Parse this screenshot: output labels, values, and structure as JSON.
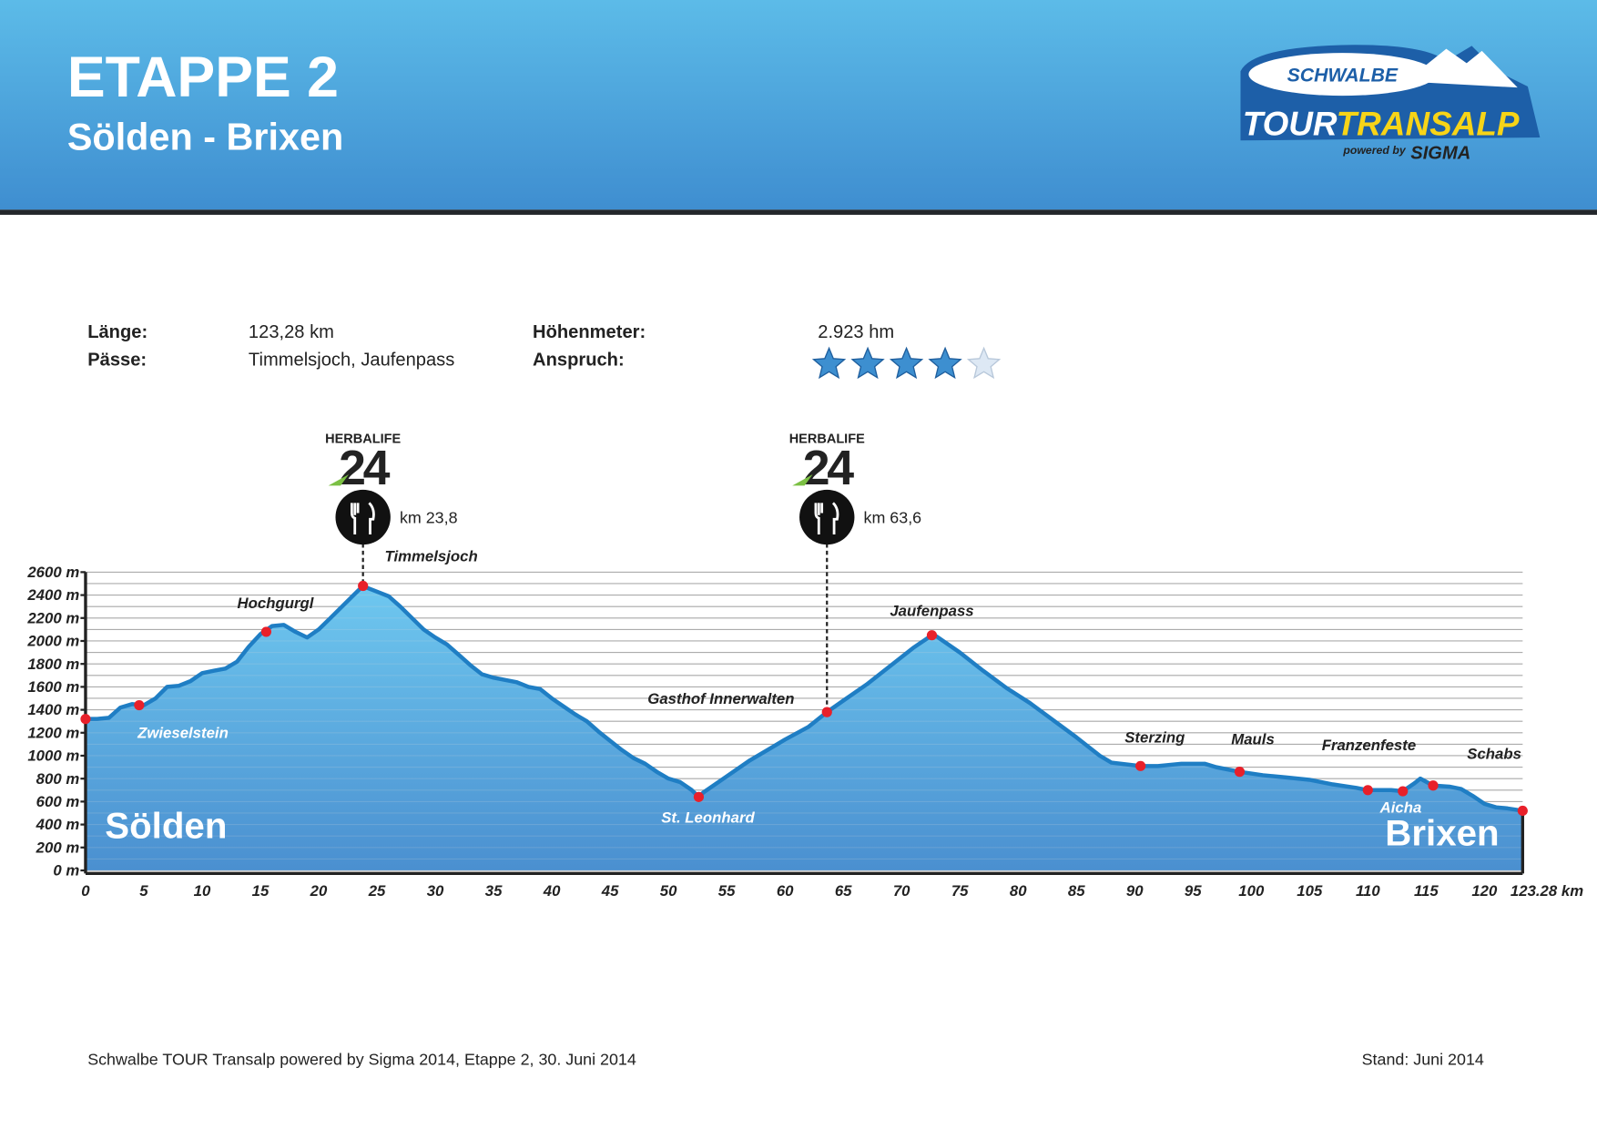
{
  "header": {
    "title": "ETAPPE 2",
    "subtitle": "Sölden - Brixen"
  },
  "logo": {
    "brand": "SCHWALBE",
    "tour": "TOUR",
    "transalp": "TRANSALP",
    "powered": "powered by",
    "sponsor": "SIGMA"
  },
  "info": {
    "length_label": "Länge:",
    "length": "123,28 km",
    "passes_label": "Pässe:",
    "passes": "Timmelsjoch, Jaufenpass",
    "climb_label": "Höhenmeter:",
    "climb": "2.923 hm",
    "rating_label": "Anspruch:",
    "rating": 4,
    "rating_max": 5
  },
  "chart_data": {
    "type": "area",
    "color": "#1f7ec4",
    "x": [
      0,
      1,
      2,
      3,
      4,
      5,
      6,
      7,
      8,
      9,
      10,
      11,
      12,
      13,
      14,
      15,
      16,
      17,
      18,
      19,
      20,
      21,
      22,
      23,
      23.8,
      24,
      25,
      26,
      27,
      28,
      29,
      30,
      31,
      32,
      33,
      34,
      35,
      36,
      37,
      38,
      39,
      40,
      41,
      42,
      43,
      44,
      45,
      46,
      47,
      48,
      49,
      50,
      51,
      52,
      52.6,
      53,
      55,
      57,
      59,
      60,
      62,
      63.6,
      65,
      67,
      69,
      71,
      72.6,
      73,
      75,
      77,
      79,
      81,
      83,
      85,
      87,
      88,
      90.5,
      92,
      94,
      96,
      97,
      99,
      101,
      103,
      105,
      107,
      109,
      110,
      112,
      113,
      114,
      114.5,
      115.6,
      117,
      118,
      119,
      120,
      121,
      122,
      123.28
    ],
    "values": [
      1320,
      1320,
      1330,
      1420,
      1450,
      1440,
      1500,
      1600,
      1610,
      1650,
      1720,
      1740,
      1760,
      1820,
      1950,
      2060,
      2130,
      2140,
      2080,
      2030,
      2100,
      2200,
      2300,
      2400,
      2480,
      2470,
      2430,
      2390,
      2300,
      2200,
      2100,
      2030,
      1970,
      1880,
      1790,
      1710,
      1680,
      1660,
      1640,
      1600,
      1580,
      1500,
      1430,
      1360,
      1300,
      1210,
      1130,
      1050,
      980,
      930,
      860,
      800,
      770,
      700,
      640,
      680,
      820,
      960,
      1080,
      1140,
      1250,
      1380,
      1480,
      1620,
      1780,
      1940,
      2050,
      2040,
      1900,
      1740,
      1590,
      1460,
      1310,
      1160,
      1000,
      940,
      910,
      910,
      930,
      930,
      900,
      860,
      830,
      810,
      790,
      750,
      720,
      700,
      700,
      690,
      760,
      800,
      740,
      730,
      710,
      650,
      580,
      550,
      540,
      520
    ],
    "xlim": [
      0,
      123.28
    ],
    "ylim": [
      0,
      2600
    ],
    "xticks": [
      0,
      5,
      10,
      15,
      20,
      25,
      30,
      35,
      40,
      45,
      50,
      55,
      60,
      65,
      70,
      75,
      80,
      85,
      90,
      95,
      100,
      105,
      110,
      115,
      120,
      {
        "value": 123.28,
        "label": "123.28 km"
      }
    ],
    "yticks": [
      {
        "value": 0,
        "label": "0 m"
      },
      {
        "value": 200,
        "label": "200 m"
      },
      {
        "value": 400,
        "label": "400 m"
      },
      {
        "value": 600,
        "label": "600 m"
      },
      {
        "value": 800,
        "label": "800 m"
      },
      {
        "value": 1000,
        "label": "1000 m"
      },
      {
        "value": 1200,
        "label": "1200 m"
      },
      {
        "value": 1400,
        "label": "1400 m"
      },
      {
        "value": 1600,
        "label": "1600 m"
      },
      {
        "value": 1800,
        "label": "1800 m"
      },
      {
        "value": 2000,
        "label": "2000 m"
      },
      {
        "value": 2200,
        "label": "2200 m"
      },
      {
        "value": 2400,
        "label": "2400 m"
      },
      {
        "value": 2600,
        "label": "2600 m"
      }
    ],
    "grid": true,
    "grid_step": 100,
    "waypoints": [
      {
        "name": "Sölden",
        "km": 0,
        "elevation": 1320
      },
      {
        "name": "Zwieselstein",
        "km": 4.6,
        "elevation": 1440
      },
      {
        "name": "Hochgurgl",
        "km": 15.5,
        "elevation": 2080
      },
      {
        "name": "Timmelsjoch",
        "km": 23.8,
        "elevation": 2480
      },
      {
        "name": "St. Leonhard",
        "km": 52.6,
        "elevation": 640
      },
      {
        "name": "Gasthof Innerwalten",
        "km": 63.6,
        "elevation": 1380
      },
      {
        "name": "Jaufenpass",
        "km": 72.6,
        "elevation": 2050
      },
      {
        "name": "Sterzing",
        "km": 90.5,
        "elevation": 910
      },
      {
        "name": "Mauls",
        "km": 99,
        "elevation": 860
      },
      {
        "name": "Franzenfeste",
        "km": 110,
        "elevation": 700
      },
      {
        "name": "Aicha",
        "km": 113,
        "elevation": 690
      },
      {
        "name": "Schabs",
        "km": 115.6,
        "elevation": 740
      },
      {
        "name": "Brixen",
        "km": 123.28,
        "elevation": 520
      }
    ],
    "feed_stations": [
      {
        "km": 23.8,
        "label": "km 23,8",
        "sponsor": "HERBALIFE",
        "badge": "24"
      },
      {
        "km": 63.6,
        "label": "km 63,6",
        "sponsor": "HERBALIFE",
        "badge": "24"
      }
    ]
  },
  "footer": {
    "left": "Schwalbe TOUR Transalp powered by Sigma 2014, Etappe 2, 30. Juni 2014",
    "right": "Stand: Juni 2014"
  }
}
